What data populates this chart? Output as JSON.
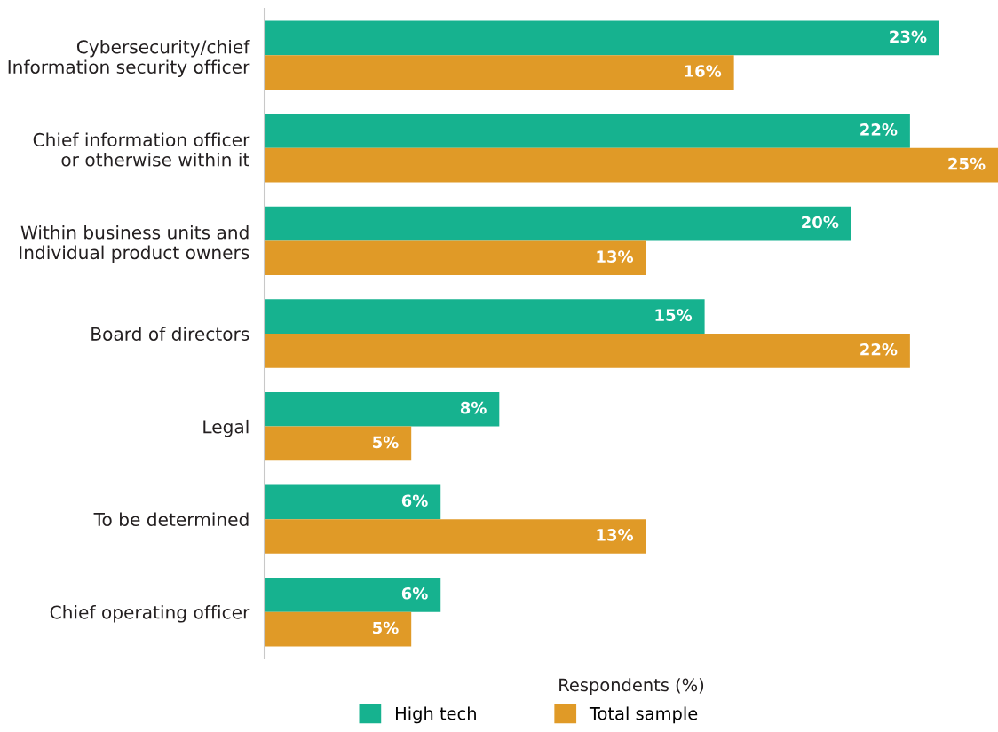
{
  "chart_data": {
    "type": "bar",
    "orientation": "horizontal",
    "xlabel": "Respondents (%)",
    "xlim": [
      0,
      25
    ],
    "legend": "bottom",
    "grid": false,
    "tick_labels": "y",
    "categories": [
      "Cybersecurity/chief\nInformation security officer",
      "Chief information officer\nor otherwise within it",
      "Within business units and\nIndividual product owners",
      "Board of directors",
      "Legal",
      "To be determined",
      "Chief operating officer"
    ],
    "series": [
      {
        "name": "High tech",
        "color": "#16b28f",
        "values": [
          23,
          22,
          20,
          15,
          8,
          6,
          6
        ],
        "value_labels": [
          "23%",
          "22%",
          "20%",
          "15%",
          "8%",
          "6%",
          "6%"
        ]
      },
      {
        "name": "Total sample",
        "color": "#e09a27",
        "values": [
          16,
          25,
          13,
          22,
          5,
          13,
          5
        ],
        "value_labels": [
          "16%",
          "25%",
          "13%",
          "22%",
          "5%",
          "13%",
          "5%"
        ]
      }
    ]
  }
}
